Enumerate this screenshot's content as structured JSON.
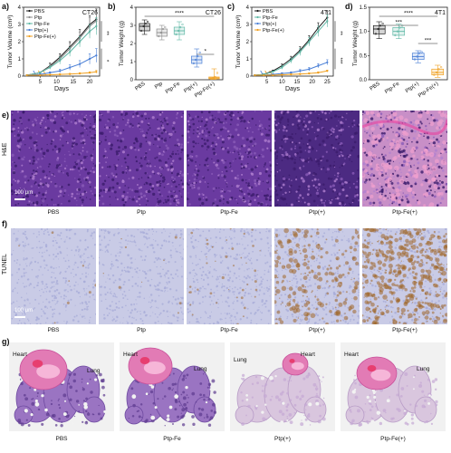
{
  "figure": {
    "panel_letters": [
      "a)",
      "b)",
      "c)",
      "d)",
      "e)",
      "f)",
      "g)"
    ],
    "rows": {
      "he": "H&E",
      "tunel": "TUNEL",
      "scale_bar": "100 μm"
    },
    "row_e_labels": [
      "PBS",
      "Ptp",
      "Ptp-Fe",
      "Ptp(+)",
      "Ptp-Fe(+)"
    ],
    "row_f_labels": [
      "PBS",
      "Ptp",
      "Ptp-Fe",
      "Ptp(+)",
      "Ptp-Fe(+)"
    ],
    "row_g_labels": [
      "PBS",
      "Ptp-Fe",
      "Ptp(+)",
      "Ptp-Fe(+)"
    ],
    "organ_labels": {
      "heart": "Heart",
      "lung": "Lung"
    },
    "colors": {
      "pbs": "#1a1a1a",
      "ptp": "#8c8c8c",
      "ptpfe": "#5fb8a6",
      "ptpp": "#4a7fd6",
      "ptpfep": "#f0a020",
      "he_purple": "#7b3f9e",
      "he_pink": "#e59ac8",
      "tunel_bg": "#c9cbe6",
      "tunel_brown": "#a0682a"
    }
  },
  "chart_data": [
    {
      "id": "a",
      "type": "line",
      "title": "CT26",
      "xlabel": "Days",
      "ylabel": "Tumor Volume (cm³)",
      "xlim": [
        0,
        23
      ],
      "ylim": [
        0,
        4
      ],
      "xticks": [
        5,
        10,
        15,
        20
      ],
      "yticks": [
        0,
        1,
        2,
        3,
        4
      ],
      "significance": [
        "**",
        "*"
      ],
      "x": [
        1,
        5,
        8,
        11,
        14,
        17,
        20,
        22
      ],
      "series": [
        {
          "name": "PBS",
          "color": "#1a1a1a",
          "values": [
            0.05,
            0.2,
            0.6,
            1.1,
            1.7,
            2.3,
            3.0,
            3.3
          ],
          "err": [
            0.02,
            0.05,
            0.15,
            0.2,
            0.3,
            0.4,
            0.5,
            0.6
          ]
        },
        {
          "name": "Ptp",
          "color": "#8c8c8c",
          "values": [
            0.05,
            0.2,
            0.55,
            1.0,
            1.6,
            2.2,
            2.9,
            3.2
          ],
          "err": [
            0.02,
            0.05,
            0.15,
            0.2,
            0.3,
            0.35,
            0.5,
            0.5
          ]
        },
        {
          "name": "Ptp-Fe",
          "color": "#5fb8a6",
          "values": [
            0.05,
            0.2,
            0.5,
            0.9,
            1.4,
            2.0,
            2.6,
            2.9
          ],
          "err": [
            0.02,
            0.05,
            0.1,
            0.2,
            0.25,
            0.3,
            0.4,
            0.5
          ]
        },
        {
          "name": "Ptp(+)",
          "color": "#4a7fd6",
          "values": [
            0.05,
            0.1,
            0.2,
            0.3,
            0.5,
            0.7,
            1.0,
            1.2
          ],
          "err": [
            0.02,
            0.03,
            0.05,
            0.1,
            0.15,
            0.2,
            0.3,
            0.4
          ]
        },
        {
          "name": "Ptp-Fe(+)",
          "color": "#f0a020",
          "values": [
            0.05,
            0.05,
            0.08,
            0.1,
            0.12,
            0.15,
            0.2,
            0.25
          ],
          "err": [
            0.01,
            0.02,
            0.02,
            0.03,
            0.04,
            0.05,
            0.05,
            0.08
          ]
        }
      ]
    },
    {
      "id": "b",
      "type": "box",
      "title": "CT26",
      "ylabel": "Tumor Weight (g)",
      "ylim": [
        0,
        4
      ],
      "yticks": [
        0,
        1,
        2,
        3,
        4
      ],
      "significance": [
        "****",
        "*"
      ],
      "categories": [
        "PBS",
        "Ptp",
        "Ptp-Fe",
        "Ptp(+)",
        "Ptp-Fe(+)"
      ],
      "boxes": [
        {
          "color": "#1a1a1a",
          "min": 2.5,
          "q1": 2.7,
          "median": 2.95,
          "q3": 3.1,
          "max": 3.3
        },
        {
          "color": "#8c8c8c",
          "min": 2.2,
          "q1": 2.4,
          "median": 2.6,
          "q3": 2.8,
          "max": 3.0
        },
        {
          "color": "#5fb8a6",
          "min": 2.2,
          "q1": 2.5,
          "median": 2.7,
          "q3": 2.9,
          "max": 3.2
        },
        {
          "color": "#4a7fd6",
          "min": 0.7,
          "q1": 0.9,
          "median": 1.1,
          "q3": 1.3,
          "max": 1.7
        },
        {
          "color": "#f0a020",
          "min": 0.02,
          "q1": 0.05,
          "median": 0.1,
          "q3": 0.15,
          "max": 0.6
        }
      ]
    },
    {
      "id": "c",
      "type": "line",
      "title": "4T1",
      "xlabel": "Days",
      "ylabel": "Tumor Volume (cm³)",
      "xlim": [
        0,
        27
      ],
      "ylim": [
        0,
        4
      ],
      "xticks": [
        5,
        10,
        15,
        20,
        25
      ],
      "yticks": [
        0,
        1,
        2,
        3,
        4
      ],
      "significance": [
        "**",
        "***"
      ],
      "x": [
        1,
        4,
        7,
        10,
        13,
        16,
        19,
        22,
        25
      ],
      "series": [
        {
          "name": "PBS",
          "color": "#1a1a1a",
          "values": [
            0.05,
            0.1,
            0.3,
            0.6,
            1.0,
            1.5,
            2.1,
            2.8,
            3.4
          ],
          "err": [
            0.02,
            0.03,
            0.05,
            0.1,
            0.15,
            0.2,
            0.25,
            0.3,
            0.35
          ]
        },
        {
          "name": "Ptp-Fe",
          "color": "#5fb8a6",
          "values": [
            0.05,
            0.1,
            0.25,
            0.5,
            0.9,
            1.4,
            2.0,
            2.6,
            3.2
          ],
          "err": [
            0.02,
            0.03,
            0.05,
            0.1,
            0.15,
            0.2,
            0.25,
            0.3,
            0.35
          ]
        },
        {
          "name": "Ptp(+)",
          "color": "#4a7fd6",
          "values": [
            0.05,
            0.05,
            0.1,
            0.15,
            0.2,
            0.3,
            0.4,
            0.6,
            0.8
          ],
          "err": [
            0.01,
            0.02,
            0.03,
            0.05,
            0.05,
            0.08,
            0.1,
            0.12,
            0.15
          ]
        },
        {
          "name": "Ptp-Fe(+)",
          "color": "#f0a020",
          "values": [
            0.05,
            0.05,
            0.05,
            0.08,
            0.1,
            0.12,
            0.15,
            0.2,
            0.3
          ],
          "err": [
            0.01,
            0.01,
            0.02,
            0.02,
            0.03,
            0.03,
            0.04,
            0.05,
            0.05
          ]
        }
      ]
    },
    {
      "id": "d",
      "type": "box",
      "title": "4T1",
      "ylabel": "Tumor Weight (g)",
      "ylim": [
        0,
        1.5
      ],
      "yticks": [
        0.0,
        0.5,
        1.0,
        1.5
      ],
      "significance": [
        "****",
        "***",
        "***"
      ],
      "categories": [
        "PBS",
        "Ptp-Fe",
        "Ptp(+)",
        "Ptp-Fe(+)"
      ],
      "boxes": [
        {
          "color": "#1a1a1a",
          "min": 0.85,
          "q1": 0.95,
          "median": 1.05,
          "q3": 1.12,
          "max": 1.2
        },
        {
          "color": "#5fb8a6",
          "min": 0.85,
          "q1": 0.92,
          "median": 1.0,
          "q3": 1.08,
          "max": 1.15
        },
        {
          "color": "#4a7fd6",
          "min": 0.35,
          "q1": 0.42,
          "median": 0.48,
          "q3": 0.55,
          "max": 0.6
        },
        {
          "color": "#f0a020",
          "min": 0.05,
          "q1": 0.1,
          "median": 0.15,
          "q3": 0.22,
          "max": 0.3
        }
      ]
    }
  ]
}
